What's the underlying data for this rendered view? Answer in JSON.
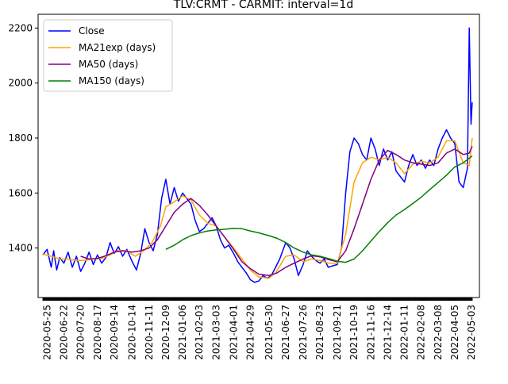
{
  "chart_data": {
    "type": "line",
    "title": "TLV:CRMT - CARMIT: interval=1d",
    "xlabel": "",
    "ylabel": "",
    "x_range": [
      "2020-05-10",
      "2022-05-16"
    ],
    "ylim": [
      1220,
      2250
    ],
    "yticks": [
      1400,
      1600,
      1800,
      2000,
      2200
    ],
    "xticks": [
      "2020-05-25",
      "2020-06-22",
      "2020-07-20",
      "2020-08-17",
      "2020-09-14",
      "2020-10-14",
      "2020-11-11",
      "2020-12-09",
      "2021-01-06",
      "2021-02-03",
      "2021-03-03",
      "2021-04-01",
      "2021-04-29",
      "2021-05-30",
      "2021-06-27",
      "2021-07-26",
      "2021-08-23",
      "2021-09-21",
      "2021-10-19",
      "2021-11-16",
      "2021-12-14",
      "2022-01-11",
      "2022-02-08",
      "2022-03-08",
      "2022-04-05",
      "2022-05-03"
    ],
    "grid": false,
    "legend_position": "top-left",
    "series": [
      {
        "name": "Close",
        "color": "#0000ff",
        "points": [
          [
            "2020-05-18",
            1375
          ],
          [
            "2020-05-25",
            1395
          ],
          [
            "2020-06-01",
            1330
          ],
          [
            "2020-06-05",
            1390
          ],
          [
            "2020-06-10",
            1320
          ],
          [
            "2020-06-15",
            1365
          ],
          [
            "2020-06-22",
            1345
          ],
          [
            "2020-06-29",
            1385
          ],
          [
            "2020-07-06",
            1330
          ],
          [
            "2020-07-13",
            1370
          ],
          [
            "2020-07-20",
            1315
          ],
          [
            "2020-07-27",
            1345
          ],
          [
            "2020-08-03",
            1385
          ],
          [
            "2020-08-10",
            1340
          ],
          [
            "2020-08-17",
            1375
          ],
          [
            "2020-08-24",
            1345
          ],
          [
            "2020-08-31",
            1365
          ],
          [
            "2020-09-07",
            1420
          ],
          [
            "2020-09-14",
            1380
          ],
          [
            "2020-09-21",
            1405
          ],
          [
            "2020-09-28",
            1370
          ],
          [
            "2020-10-05",
            1395
          ],
          [
            "2020-10-14",
            1350
          ],
          [
            "2020-10-21",
            1320
          ],
          [
            "2020-10-28",
            1380
          ],
          [
            "2020-11-04",
            1470
          ],
          [
            "2020-11-11",
            1420
          ],
          [
            "2020-11-18",
            1390
          ],
          [
            "2020-11-25",
            1450
          ],
          [
            "2020-12-02",
            1580
          ],
          [
            "2020-12-09",
            1650
          ],
          [
            "2020-12-16",
            1560
          ],
          [
            "2020-12-23",
            1620
          ],
          [
            "2020-12-30",
            1570
          ],
          [
            "2021-01-06",
            1600
          ],
          [
            "2021-01-13",
            1580
          ],
          [
            "2021-01-20",
            1560
          ],
          [
            "2021-01-27",
            1500
          ],
          [
            "2021-02-03",
            1460
          ],
          [
            "2021-02-10",
            1470
          ],
          [
            "2021-02-17",
            1490
          ],
          [
            "2021-02-24",
            1510
          ],
          [
            "2021-03-03",
            1480
          ],
          [
            "2021-03-10",
            1430
          ],
          [
            "2021-03-17",
            1400
          ],
          [
            "2021-03-24",
            1410
          ],
          [
            "2021-04-01",
            1380
          ],
          [
            "2021-04-08",
            1350
          ],
          [
            "2021-04-15",
            1330
          ],
          [
            "2021-04-22",
            1310
          ],
          [
            "2021-04-29",
            1285
          ],
          [
            "2021-05-06",
            1275
          ],
          [
            "2021-05-13",
            1280
          ],
          [
            "2021-05-20",
            1300
          ],
          [
            "2021-05-27",
            1290
          ],
          [
            "2021-06-03",
            1300
          ],
          [
            "2021-06-10",
            1330
          ],
          [
            "2021-06-17",
            1360
          ],
          [
            "2021-06-27",
            1420
          ],
          [
            "2021-07-04",
            1400
          ],
          [
            "2021-07-11",
            1360
          ],
          [
            "2021-07-18",
            1300
          ],
          [
            "2021-07-26",
            1340
          ],
          [
            "2021-08-02",
            1390
          ],
          [
            "2021-08-09",
            1370
          ],
          [
            "2021-08-16",
            1355
          ],
          [
            "2021-08-23",
            1345
          ],
          [
            "2021-08-30",
            1360
          ],
          [
            "2021-09-06",
            1330
          ],
          [
            "2021-09-13",
            1335
          ],
          [
            "2021-09-21",
            1340
          ],
          [
            "2021-09-28",
            1400
          ],
          [
            "2021-10-05",
            1600
          ],
          [
            "2021-10-12",
            1750
          ],
          [
            "2021-10-19",
            1800
          ],
          [
            "2021-10-26",
            1780
          ],
          [
            "2021-11-02",
            1740
          ],
          [
            "2021-11-09",
            1720
          ],
          [
            "2021-11-16",
            1800
          ],
          [
            "2021-11-23",
            1760
          ],
          [
            "2021-11-30",
            1700
          ],
          [
            "2021-12-07",
            1760
          ],
          [
            "2021-12-14",
            1720
          ],
          [
            "2021-12-21",
            1750
          ],
          [
            "2021-12-28",
            1680
          ],
          [
            "2022-01-04",
            1660
          ],
          [
            "2022-01-11",
            1640
          ],
          [
            "2022-01-18",
            1700
          ],
          [
            "2022-01-25",
            1740
          ],
          [
            "2022-02-01",
            1700
          ],
          [
            "2022-02-08",
            1720
          ],
          [
            "2022-02-15",
            1690
          ],
          [
            "2022-02-22",
            1720
          ],
          [
            "2022-03-01",
            1700
          ],
          [
            "2022-03-08",
            1760
          ],
          [
            "2022-03-15",
            1800
          ],
          [
            "2022-03-22",
            1830
          ],
          [
            "2022-03-29",
            1800
          ],
          [
            "2022-04-05",
            1780
          ],
          [
            "2022-04-12",
            1640
          ],
          [
            "2022-04-19",
            1620
          ],
          [
            "2022-04-26",
            1690
          ],
          [
            "2022-04-29",
            2200
          ],
          [
            "2022-05-02",
            1850
          ],
          [
            "2022-05-04",
            1930
          ]
        ]
      },
      {
        "name": "MA21exp (days)",
        "color": "#ffa500",
        "points": [
          [
            "2020-05-18",
            1378
          ],
          [
            "2020-06-01",
            1370
          ],
          [
            "2020-06-15",
            1360
          ],
          [
            "2020-06-29",
            1360
          ],
          [
            "2020-07-13",
            1355
          ],
          [
            "2020-07-27",
            1355
          ],
          [
            "2020-08-10",
            1360
          ],
          [
            "2020-08-24",
            1362
          ],
          [
            "2020-09-07",
            1375
          ],
          [
            "2020-09-21",
            1392
          ],
          [
            "2020-10-05",
            1390
          ],
          [
            "2020-10-19",
            1370
          ],
          [
            "2020-11-02",
            1390
          ],
          [
            "2020-11-16",
            1420
          ],
          [
            "2020-11-30",
            1480
          ],
          [
            "2020-12-09",
            1550
          ],
          [
            "2020-12-21",
            1565
          ],
          [
            "2021-01-06",
            1590
          ],
          [
            "2021-01-20",
            1575
          ],
          [
            "2021-02-03",
            1520
          ],
          [
            "2021-02-17",
            1490
          ],
          [
            "2021-03-03",
            1480
          ],
          [
            "2021-03-17",
            1440
          ],
          [
            "2021-04-01",
            1400
          ],
          [
            "2021-04-15",
            1360
          ],
          [
            "2021-04-29",
            1320
          ],
          [
            "2021-05-13",
            1295
          ],
          [
            "2021-05-30",
            1290
          ],
          [
            "2021-06-10",
            1310
          ],
          [
            "2021-06-27",
            1370
          ],
          [
            "2021-07-11",
            1375
          ],
          [
            "2021-07-26",
            1350
          ],
          [
            "2021-08-09",
            1360
          ],
          [
            "2021-08-23",
            1355
          ],
          [
            "2021-09-06",
            1345
          ],
          [
            "2021-09-21",
            1345
          ],
          [
            "2021-10-05",
            1450
          ],
          [
            "2021-10-19",
            1640
          ],
          [
            "2021-11-02",
            1710
          ],
          [
            "2021-11-16",
            1730
          ],
          [
            "2021-11-30",
            1720
          ],
          [
            "2021-12-14",
            1730
          ],
          [
            "2021-12-28",
            1710
          ],
          [
            "2022-01-11",
            1670
          ],
          [
            "2022-01-25",
            1705
          ],
          [
            "2022-02-08",
            1715
          ],
          [
            "2022-02-22",
            1710
          ],
          [
            "2022-03-08",
            1730
          ],
          [
            "2022-03-22",
            1790
          ],
          [
            "2022-04-05",
            1790
          ],
          [
            "2022-04-19",
            1710
          ],
          [
            "2022-04-29",
            1700
          ],
          [
            "2022-05-04",
            1800
          ]
        ]
      },
      {
        "name": "MA50 (days)",
        "color": "#800080",
        "points": [
          [
            "2020-07-20",
            1370
          ],
          [
            "2020-08-03",
            1360
          ],
          [
            "2020-08-17",
            1362
          ],
          [
            "2020-08-31",
            1372
          ],
          [
            "2020-09-14",
            1385
          ],
          [
            "2020-09-28",
            1390
          ],
          [
            "2020-10-14",
            1385
          ],
          [
            "2020-10-28",
            1390
          ],
          [
            "2020-11-11",
            1400
          ],
          [
            "2020-11-25",
            1430
          ],
          [
            "2020-12-09",
            1480
          ],
          [
            "2020-12-23",
            1530
          ],
          [
            "2021-01-06",
            1560
          ],
          [
            "2021-01-20",
            1580
          ],
          [
            "2021-02-03",
            1555
          ],
          [
            "2021-02-17",
            1520
          ],
          [
            "2021-03-03",
            1480
          ],
          [
            "2021-03-17",
            1440
          ],
          [
            "2021-04-01",
            1395
          ],
          [
            "2021-04-15",
            1350
          ],
          [
            "2021-04-29",
            1325
          ],
          [
            "2021-05-13",
            1305
          ],
          [
            "2021-05-30",
            1300
          ],
          [
            "2021-06-13",
            1310
          ],
          [
            "2021-06-27",
            1330
          ],
          [
            "2021-07-11",
            1345
          ],
          [
            "2021-07-26",
            1360
          ],
          [
            "2021-08-09",
            1372
          ],
          [
            "2021-08-23",
            1368
          ],
          [
            "2021-09-06",
            1358
          ],
          [
            "2021-09-21",
            1350
          ],
          [
            "2021-10-05",
            1390
          ],
          [
            "2021-10-19",
            1470
          ],
          [
            "2021-11-02",
            1560
          ],
          [
            "2021-11-16",
            1650
          ],
          [
            "2021-11-30",
            1720
          ],
          [
            "2021-12-14",
            1755
          ],
          [
            "2021-12-28",
            1740
          ],
          [
            "2022-01-11",
            1720
          ],
          [
            "2022-01-25",
            1710
          ],
          [
            "2022-02-08",
            1705
          ],
          [
            "2022-02-22",
            1700
          ],
          [
            "2022-03-08",
            1710
          ],
          [
            "2022-03-22",
            1745
          ],
          [
            "2022-04-05",
            1760
          ],
          [
            "2022-04-19",
            1740
          ],
          [
            "2022-04-29",
            1745
          ],
          [
            "2022-05-04",
            1770
          ]
        ]
      },
      {
        "name": "MA150 (days)",
        "color": "#008000",
        "points": [
          [
            "2020-12-09",
            1395
          ],
          [
            "2020-12-23",
            1410
          ],
          [
            "2021-01-06",
            1430
          ],
          [
            "2021-01-20",
            1445
          ],
          [
            "2021-02-03",
            1455
          ],
          [
            "2021-02-17",
            1462
          ],
          [
            "2021-03-03",
            1466
          ],
          [
            "2021-03-17",
            1468
          ],
          [
            "2021-04-01",
            1472
          ],
          [
            "2021-04-15",
            1470
          ],
          [
            "2021-04-29",
            1462
          ],
          [
            "2021-05-13",
            1455
          ],
          [
            "2021-05-30",
            1445
          ],
          [
            "2021-06-13",
            1435
          ],
          [
            "2021-06-27",
            1420
          ],
          [
            "2021-07-11",
            1400
          ],
          [
            "2021-07-26",
            1385
          ],
          [
            "2021-08-09",
            1375
          ],
          [
            "2021-08-23",
            1370
          ],
          [
            "2021-09-06",
            1362
          ],
          [
            "2021-09-21",
            1352
          ],
          [
            "2021-10-05",
            1348
          ],
          [
            "2021-10-19",
            1360
          ],
          [
            "2021-11-02",
            1390
          ],
          [
            "2021-11-16",
            1425
          ],
          [
            "2021-11-30",
            1460
          ],
          [
            "2021-12-14",
            1492
          ],
          [
            "2021-12-28",
            1520
          ],
          [
            "2022-01-11",
            1540
          ],
          [
            "2022-01-25",
            1562
          ],
          [
            "2022-02-08",
            1585
          ],
          [
            "2022-02-22",
            1612
          ],
          [
            "2022-03-08",
            1638
          ],
          [
            "2022-03-22",
            1665
          ],
          [
            "2022-04-05",
            1695
          ],
          [
            "2022-04-19",
            1710
          ],
          [
            "2022-05-04",
            1735
          ]
        ]
      }
    ]
  }
}
